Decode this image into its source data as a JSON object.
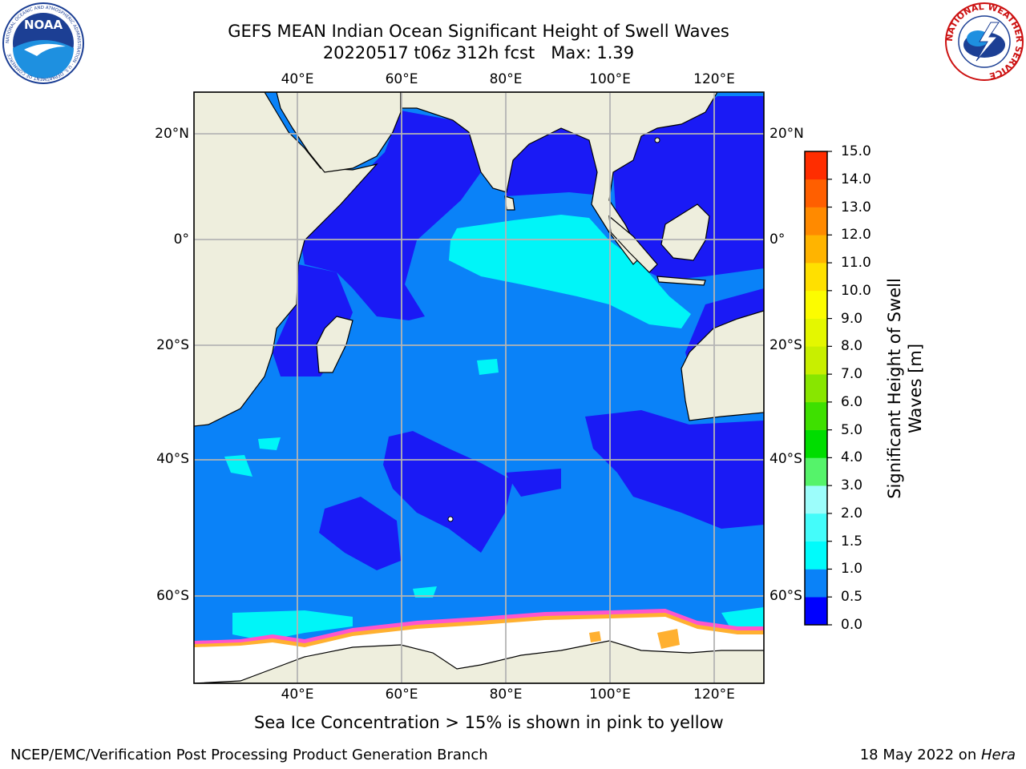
{
  "title": {
    "line1": "GEFS MEAN Indian Ocean Significant Height of Swell Waves",
    "line2": "20220517 t06z 312h fcst   Max: 1.39"
  },
  "map": {
    "lon_labels": [
      "40°E",
      "60°E",
      "80°E",
      "100°E",
      "120°E"
    ],
    "lat_labels": [
      "20°N",
      "0°",
      "20°S",
      "40°S",
      "60°S"
    ],
    "colors": {
      "land": "#eeeedd",
      "deep_blue": "#1a1af5",
      "mid_blue": "#0a82f8",
      "cyan": "#00f5f8",
      "ice_white": "#ffffff",
      "ice_pink": "#ff55cc",
      "ice_orange": "#ffb030",
      "grid": "#b4b4b4"
    }
  },
  "colorbar": {
    "title_line1": "Significant Height of Swell",
    "title_line2": "Waves [m]",
    "ticks": [
      "15.0",
      "14.0",
      "13.0",
      "12.0",
      "11.0",
      "10.0",
      "9.0",
      "8.0",
      "7.0",
      "6.0",
      "5.0",
      "4.0",
      "3.0",
      "2.0",
      "1.5",
      "1.0",
      "0.5",
      "0.0"
    ],
    "colors_bottom_to_top": [
      "#0000ff",
      "#0a82f8",
      "#00fbfb",
      "#44fcfa",
      "#9cfdfb",
      "#55f36a",
      "#00dd00",
      "#3ee000",
      "#88e600",
      "#c8ef00",
      "#e4f700",
      "#fcfc00",
      "#ffe000",
      "#ffb400",
      "#ff8a00",
      "#ff5f00",
      "#ff2d00",
      "#ff0000"
    ]
  },
  "note": "Sea Ice Concentration > 15% is shown in pink to yellow",
  "footer": {
    "left": "NCEP/EMC/Verification Post Processing Product Generation Branch",
    "date": "18 May 2022 on ",
    "host": "Hera"
  },
  "logos": {
    "noaa_text": "NOAA",
    "noaa_ring": "NATIONAL OCEANIC AND ATMOSPHERIC ADMINISTRATION · U.S. DEPARTMENT OF COMMERCE",
    "nws_ring": "NATIONAL WEATHER SERVICE"
  }
}
